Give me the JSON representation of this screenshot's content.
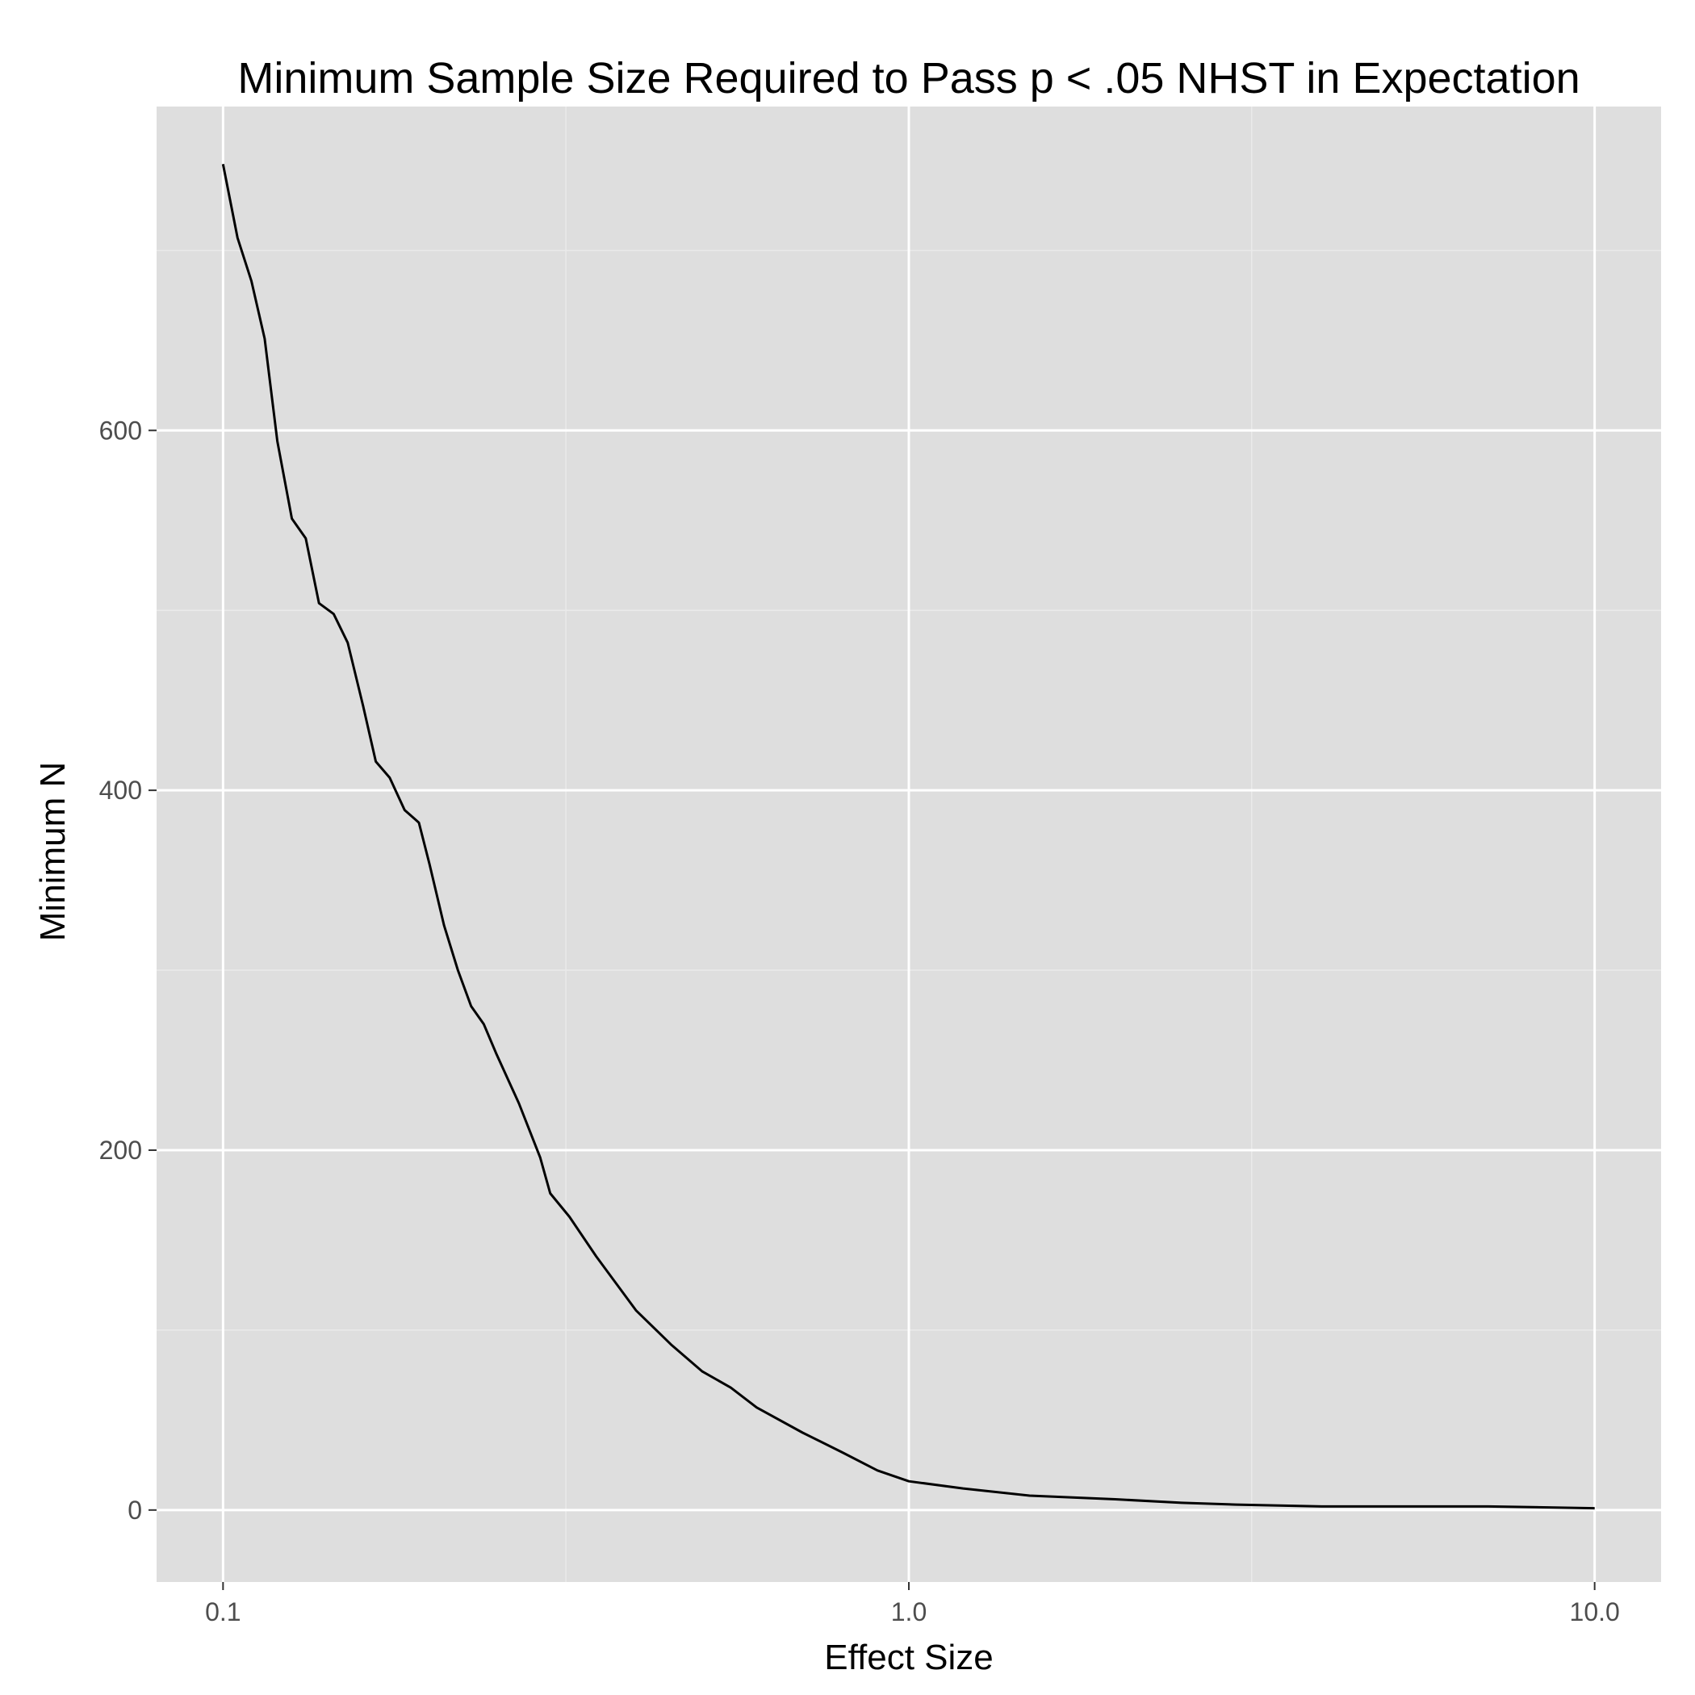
{
  "chart_data": {
    "type": "line",
    "title": "Minimum Sample Size Required to Pass p < .05 NHST in Expectation",
    "xlabel": "Effect Size",
    "ylabel": "Minimum N",
    "x_scale": "log10",
    "xlim": [
      0.08,
      12.5
    ],
    "ylim": [
      -40,
      780
    ],
    "x_ticks": [
      {
        "value": 0.1,
        "label": "0.1"
      },
      {
        "value": 1.0,
        "label": "1.0"
      },
      {
        "value": 10.0,
        "label": "10.0"
      }
    ],
    "x_minor_grid": [
      0.3162,
      3.162
    ],
    "y_ticks": [
      {
        "value": 0,
        "label": "0"
      },
      {
        "value": 200,
        "label": "200"
      },
      {
        "value": 400,
        "label": "400"
      },
      {
        "value": 600,
        "label": "600"
      }
    ],
    "y_minor_grid": [
      100,
      300,
      500,
      700
    ],
    "grid": true,
    "legend": "none",
    "colors": {
      "panel": "#dedede",
      "grid_major": "#ffffff",
      "grid_minor": "#eaeaea",
      "line": "#000000",
      "tick_label": "#4d4d4d"
    },
    "series": [
      {
        "x": [
          0.1,
          0.105,
          0.11,
          0.115,
          0.12,
          0.126,
          0.132,
          0.138,
          0.145,
          0.152,
          0.16,
          0.167,
          0.175,
          0.184,
          0.193,
          0.2,
          0.21,
          0.22,
          0.23,
          0.24,
          0.25,
          0.27,
          0.29,
          0.3,
          0.32,
          0.35,
          0.4,
          0.45,
          0.5,
          0.55,
          0.6,
          0.7,
          0.8,
          0.9,
          1.0,
          1.2,
          1.5,
          2.0,
          2.5,
          3.0,
          4.0,
          5.0,
          7.0,
          10.0
        ],
        "y": [
          748,
          707,
          683,
          651,
          594,
          551,
          540,
          504,
          498,
          482,
          447,
          416,
          407,
          389,
          382,
          359,
          325,
          300,
          280,
          270,
          254,
          226,
          196,
          176,
          163,
          141,
          111,
          92,
          77,
          68,
          57,
          43,
          32,
          22,
          16,
          12,
          8,
          6,
          4,
          3,
          2,
          2,
          2,
          1
        ]
      }
    ]
  }
}
